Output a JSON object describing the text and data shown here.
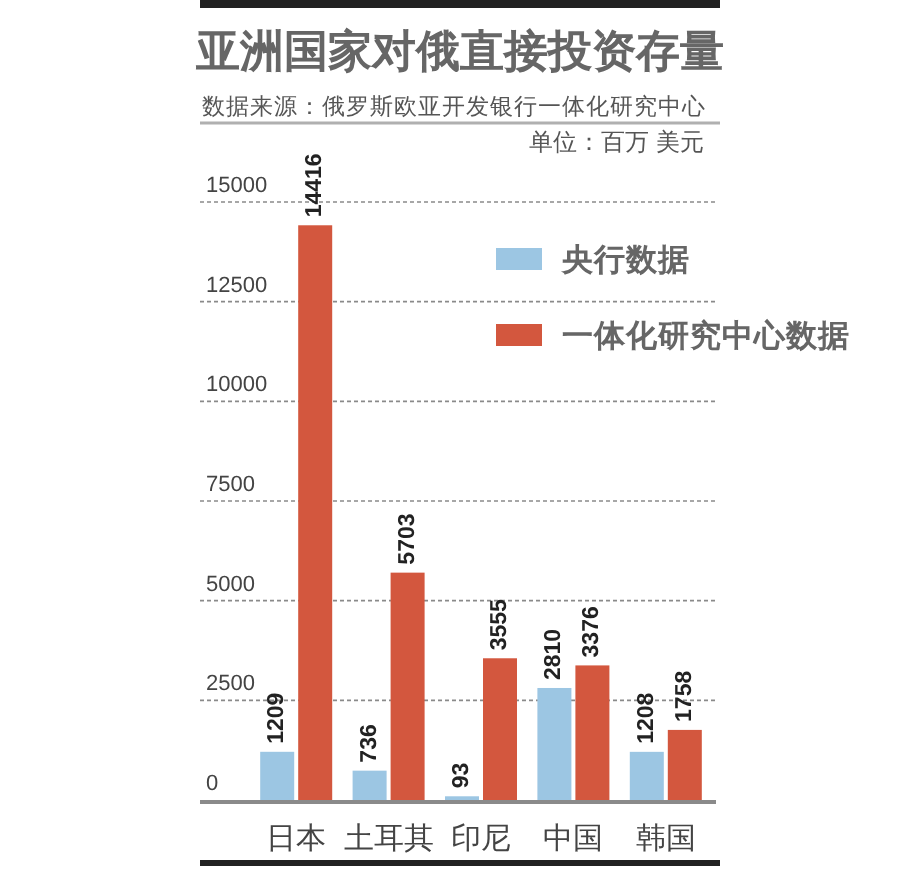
{
  "chart_data": {
    "type": "bar",
    "title": "亚洲国家对俄直接投资存量",
    "annotations": [
      "数据来源：俄罗斯欧亚开发银行一体化研究中心",
      "单位：百万 美元"
    ],
    "categories": [
      "日本",
      "土耳其",
      "印尼",
      "中国",
      "韩国"
    ],
    "series": [
      {
        "name": "央行数据",
        "color": "#9cc6e3",
        "values": [
          1209,
          736,
          93,
          2810,
          1208
        ]
      },
      {
        "name": "一体化研究中心数据",
        "color": "#d3573e",
        "values": [
          14416,
          5703,
          3555,
          3376,
          1758
        ]
      }
    ],
    "ylim": [
      0,
      15000
    ],
    "yticks": [
      0,
      2500,
      5000,
      7500,
      10000,
      12500,
      15000
    ],
    "grid": "y",
    "legend": "top right",
    "data_labels": true
  }
}
